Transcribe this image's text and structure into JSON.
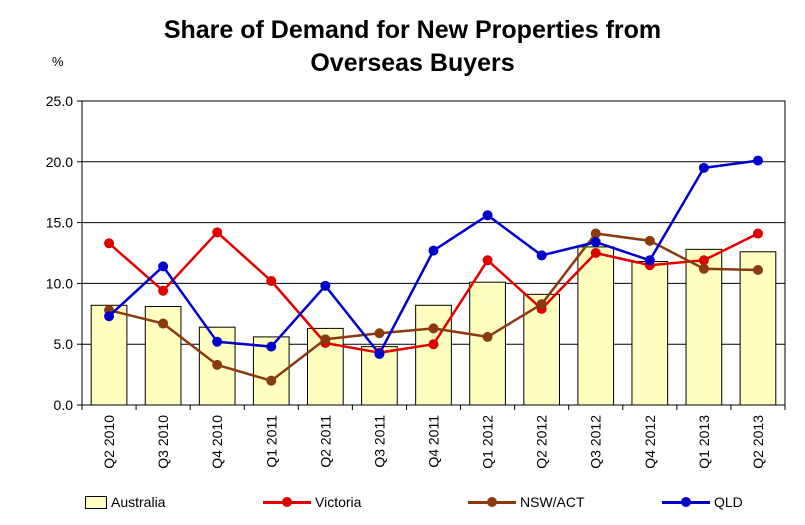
{
  "chart_data": {
    "type": "bar+line",
    "title_line1": "Share of Demand for New Properties from",
    "title_line2": "Overseas Buyers",
    "y_unit": "%",
    "ylim": [
      0,
      25
    ],
    "ytick_values": [
      0,
      5,
      10,
      15,
      20,
      25
    ],
    "ytick_labels": [
      "0.0",
      "5.0",
      "10.0",
      "15.0",
      "20.0",
      "25.0"
    ],
    "grid": true,
    "legend_position": "bottom",
    "categories": [
      "Q2 2010",
      "Q3 2010",
      "Q4 2010",
      "Q1 2011",
      "Q2 2011",
      "Q3 2011",
      "Q4 2011",
      "Q1 2012",
      "Q2 2012",
      "Q3 2012",
      "Q4 2012",
      "Q1 2013",
      "Q2 2013"
    ],
    "series": [
      {
        "name": "Australia",
        "kind": "bar",
        "color": "#ffffc0",
        "values": [
          8.2,
          8.1,
          6.4,
          5.6,
          6.3,
          4.8,
          8.2,
          10.1,
          9.1,
          13.0,
          11.8,
          12.8,
          12.6
        ]
      },
      {
        "name": "Victoria",
        "kind": "line",
        "color": "#e00000",
        "values": [
          13.3,
          9.4,
          14.2,
          10.2,
          5.1,
          4.3,
          5.0,
          11.9,
          7.9,
          12.5,
          11.5,
          11.9,
          14.1
        ]
      },
      {
        "name": "NSW/ACT",
        "kind": "line",
        "color": "#8b3a10",
        "values": [
          7.8,
          6.7,
          3.3,
          2.0,
          5.4,
          5.9,
          6.3,
          5.6,
          8.3,
          14.1,
          13.5,
          11.2,
          11.1
        ]
      },
      {
        "name": "QLD",
        "kind": "line",
        "color": "#0000cc",
        "values": [
          7.3,
          11.4,
          5.2,
          4.8,
          9.8,
          4.2,
          12.7,
          15.6,
          12.3,
          13.4,
          11.9,
          19.5,
          20.1
        ]
      }
    ]
  }
}
